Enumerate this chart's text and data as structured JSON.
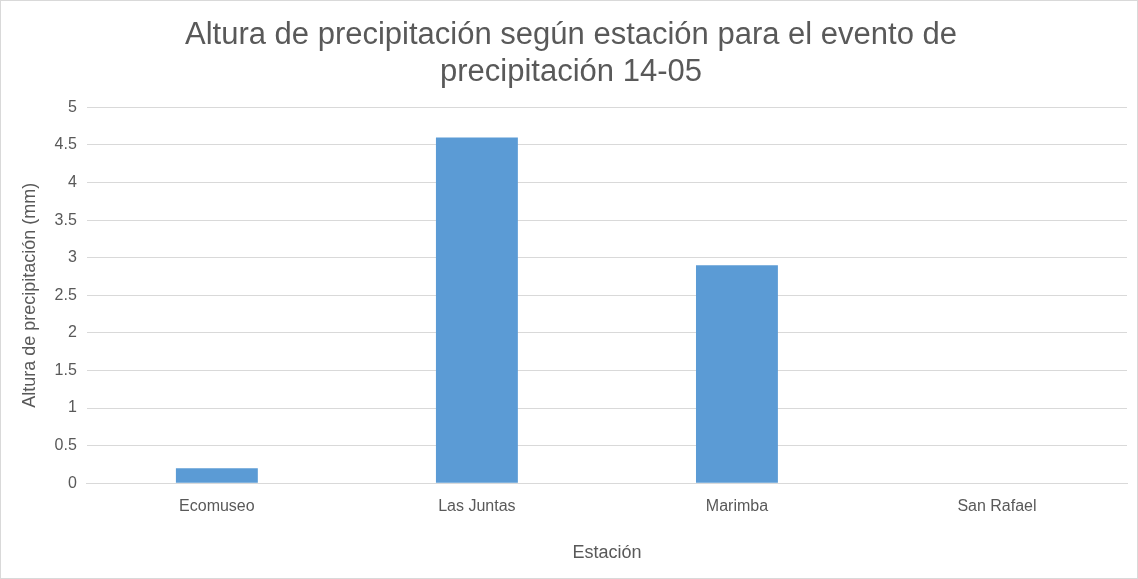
{
  "chart_data": {
    "type": "bar",
    "title": "Altura de precipitación según estación para el evento de precipitación 14-05",
    "xlabel": "Estación",
    "ylabel": "Altura de precipitación (mm)",
    "categories": [
      "Ecomuseo",
      "Las Juntas",
      "Marimba",
      "San Rafael"
    ],
    "values": [
      0.2,
      4.6,
      2.9,
      0
    ],
    "color": "#5b9bd5",
    "ylim": [
      0,
      5
    ],
    "yticks": [
      0,
      0.5,
      1,
      1.5,
      2,
      2.5,
      3,
      3.5,
      4,
      4.5,
      5
    ],
    "grid": "y",
    "legend": false
  }
}
